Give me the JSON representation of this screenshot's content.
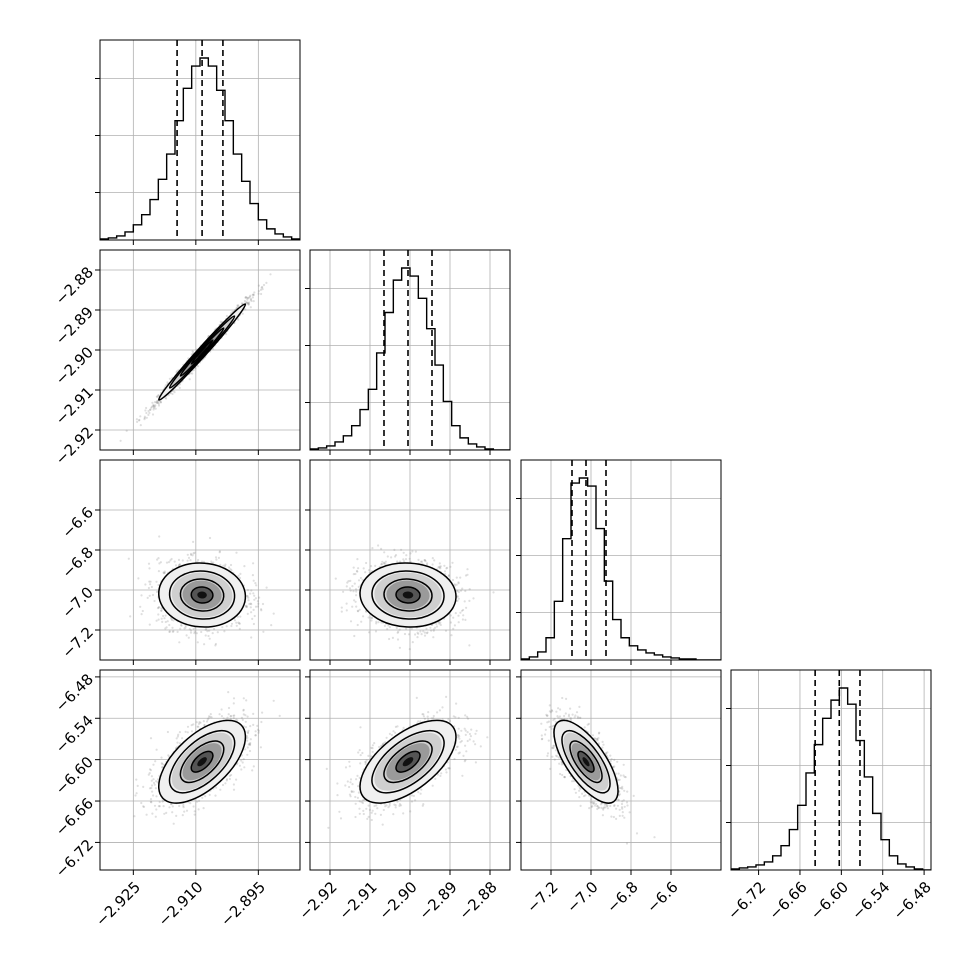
{
  "chart_data": {
    "type": "corner",
    "grid": true,
    "parameters": [
      {
        "range": [
          -2.933,
          -2.885
        ],
        "ticks": [
          -2.925,
          -2.91,
          -2.895
        ],
        "tick_labels": [
          "−2.925",
          "−2.910",
          "−2.895"
        ],
        "quantiles": [
          -2.9145,
          -2.9085,
          -2.9035
        ],
        "median": -2.9085,
        "sigma": 0.0052
      },
      {
        "range": [
          -2.925,
          -2.875
        ],
        "ticks": [
          -2.92,
          -2.91,
          -2.9,
          -2.89,
          -2.88
        ],
        "tick_labels": [
          "−2.92",
          "−2.91",
          "−2.90",
          "−2.89",
          "−2.88"
        ],
        "quantiles": [
          -2.9065,
          -2.9005,
          -2.8945
        ],
        "median": -2.9005,
        "sigma": 0.006
      },
      {
        "range": [
          -7.35,
          -6.35
        ],
        "ticks": [
          -7.2,
          -7.0,
          -6.8,
          -6.6
        ],
        "tick_labels": [
          "−7.2",
          "−7.0",
          "−6.8",
          "−6.6"
        ],
        "quantiles": [
          -7.095,
          -7.025,
          -6.925
        ],
        "median": -7.025,
        "sigma": 0.08
      },
      {
        "range": [
          -6.76,
          -6.47
        ],
        "ticks": [
          -6.72,
          -6.66,
          -6.6,
          -6.54,
          -6.48
        ],
        "tick_labels": [
          "−6.72",
          "−6.66",
          "−6.60",
          "−6.54",
          "−6.48"
        ],
        "quantiles": [
          -6.638,
          -6.603,
          -6.573
        ],
        "median": -6.603,
        "sigma": 0.03
      }
    ],
    "correlations": {
      "1-0": 0.99,
      "2-0": -0.05,
      "2-1": -0.05,
      "3-0": 0.6,
      "3-1": 0.6,
      "3-2": -0.7
    },
    "histograms": [
      [
        1,
        2,
        4,
        8,
        15,
        25,
        40,
        60,
        85,
        118,
        150,
        172,
        180,
        172,
        148,
        118,
        85,
        58,
        36,
        20,
        11,
        6,
        3,
        1
      ],
      [
        1,
        2,
        4,
        8,
        14,
        24,
        40,
        60,
        96,
        136,
        168,
        180,
        172,
        150,
        120,
        84,
        48,
        24,
        12,
        6,
        3,
        1,
        0,
        0
      ],
      [
        1,
        3,
        8,
        22,
        58,
        120,
        175,
        180,
        172,
        130,
        78,
        40,
        22,
        14,
        10,
        7,
        5,
        3,
        2,
        1,
        1,
        0,
        0,
        0
      ],
      [
        1,
        2,
        3,
        5,
        8,
        14,
        24,
        40,
        64,
        96,
        124,
        150,
        168,
        180,
        164,
        128,
        92,
        56,
        30,
        14,
        6,
        3,
        1,
        0
      ]
    ]
  }
}
